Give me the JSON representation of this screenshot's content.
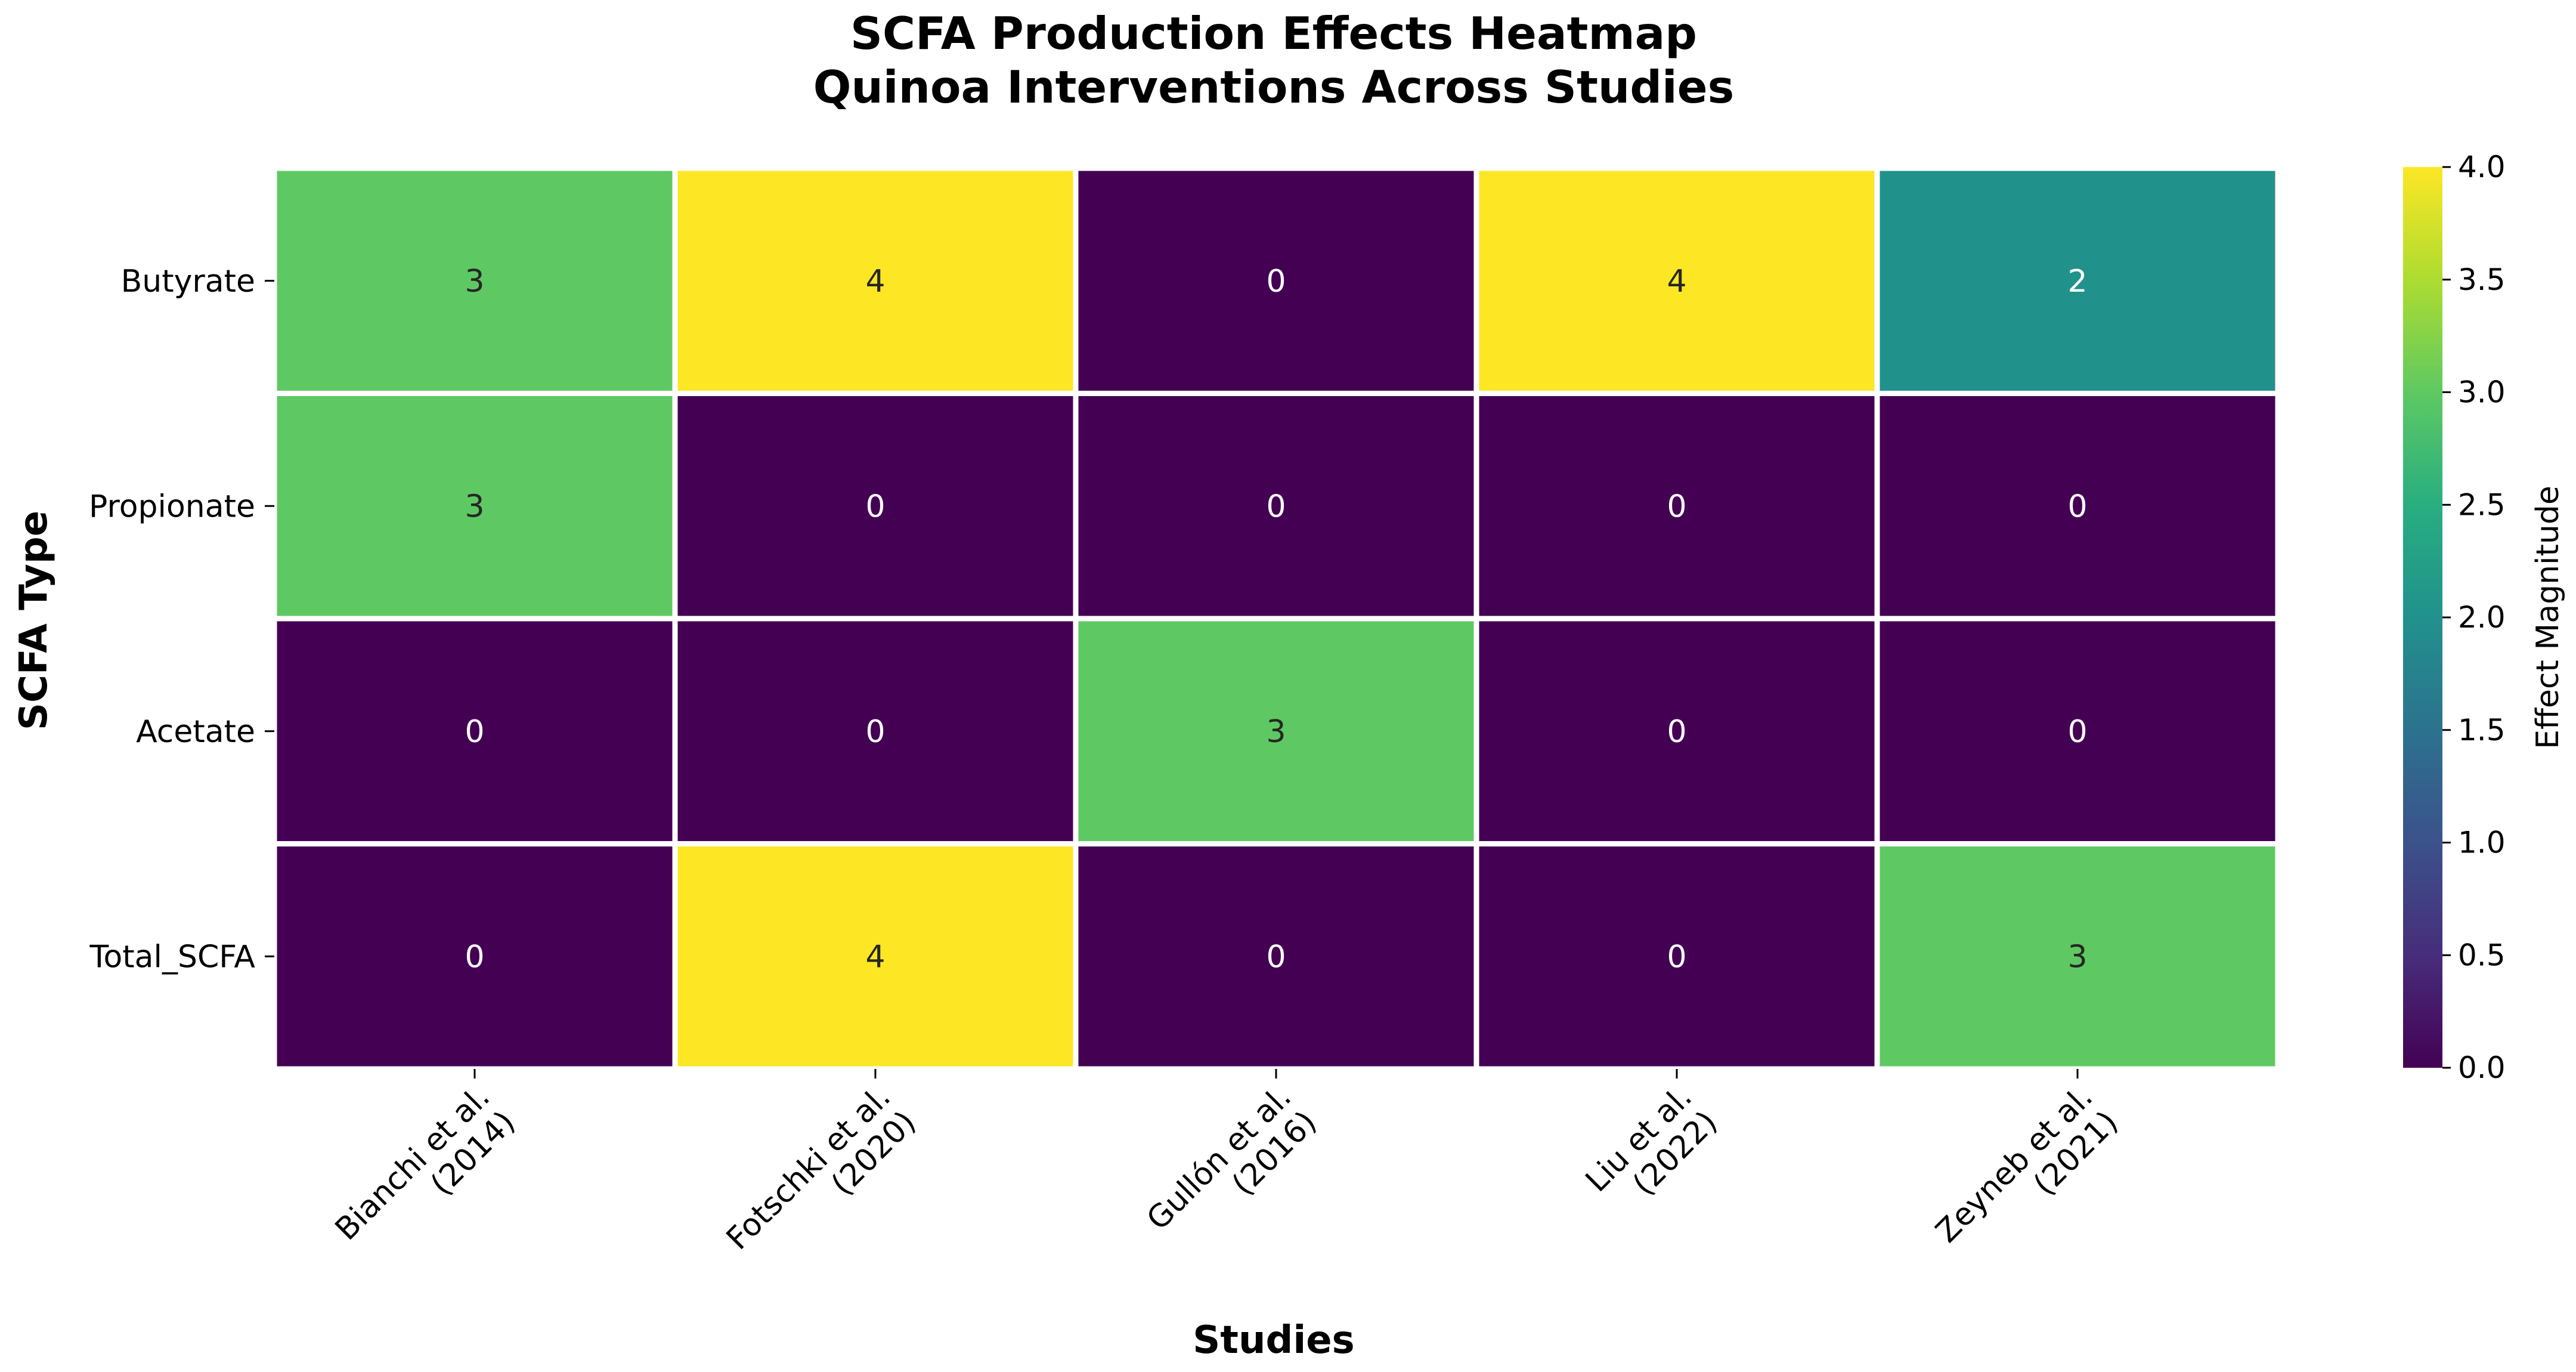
{
  "chart_data": {
    "type": "heatmap",
    "title": "SCFA Production Effects Heatmap",
    "subtitle": "Quinoa Interventions Across Studies",
    "xlabel": "Studies",
    "ylabel": "SCFA Type",
    "colorbar_label": "Effect Magnitude",
    "colormap": "viridis",
    "vmin": 0,
    "vmax": 4,
    "x_categories": [
      [
        "Bianchi et al.",
        "(2014)"
      ],
      [
        "Fotschki et al.",
        "(2020)"
      ],
      [
        "Gullón et al.",
        "(2016)"
      ],
      [
        "Liu et al.",
        "(2022)"
      ],
      [
        "Zeyneb et al.",
        "(2021)"
      ]
    ],
    "y_categories": [
      "Butyrate",
      "Propionate",
      "Acetate",
      "Total_SCFA"
    ],
    "values": [
      [
        3,
        4,
        0,
        4,
        2
      ],
      [
        3,
        0,
        0,
        0,
        0
      ],
      [
        0,
        0,
        3,
        0,
        0
      ],
      [
        0,
        4,
        0,
        0,
        3
      ]
    ],
    "colorbar_ticks": [
      "0.0",
      "0.5",
      "1.0",
      "1.5",
      "2.0",
      "2.5",
      "3.0",
      "3.5",
      "4.0"
    ]
  }
}
